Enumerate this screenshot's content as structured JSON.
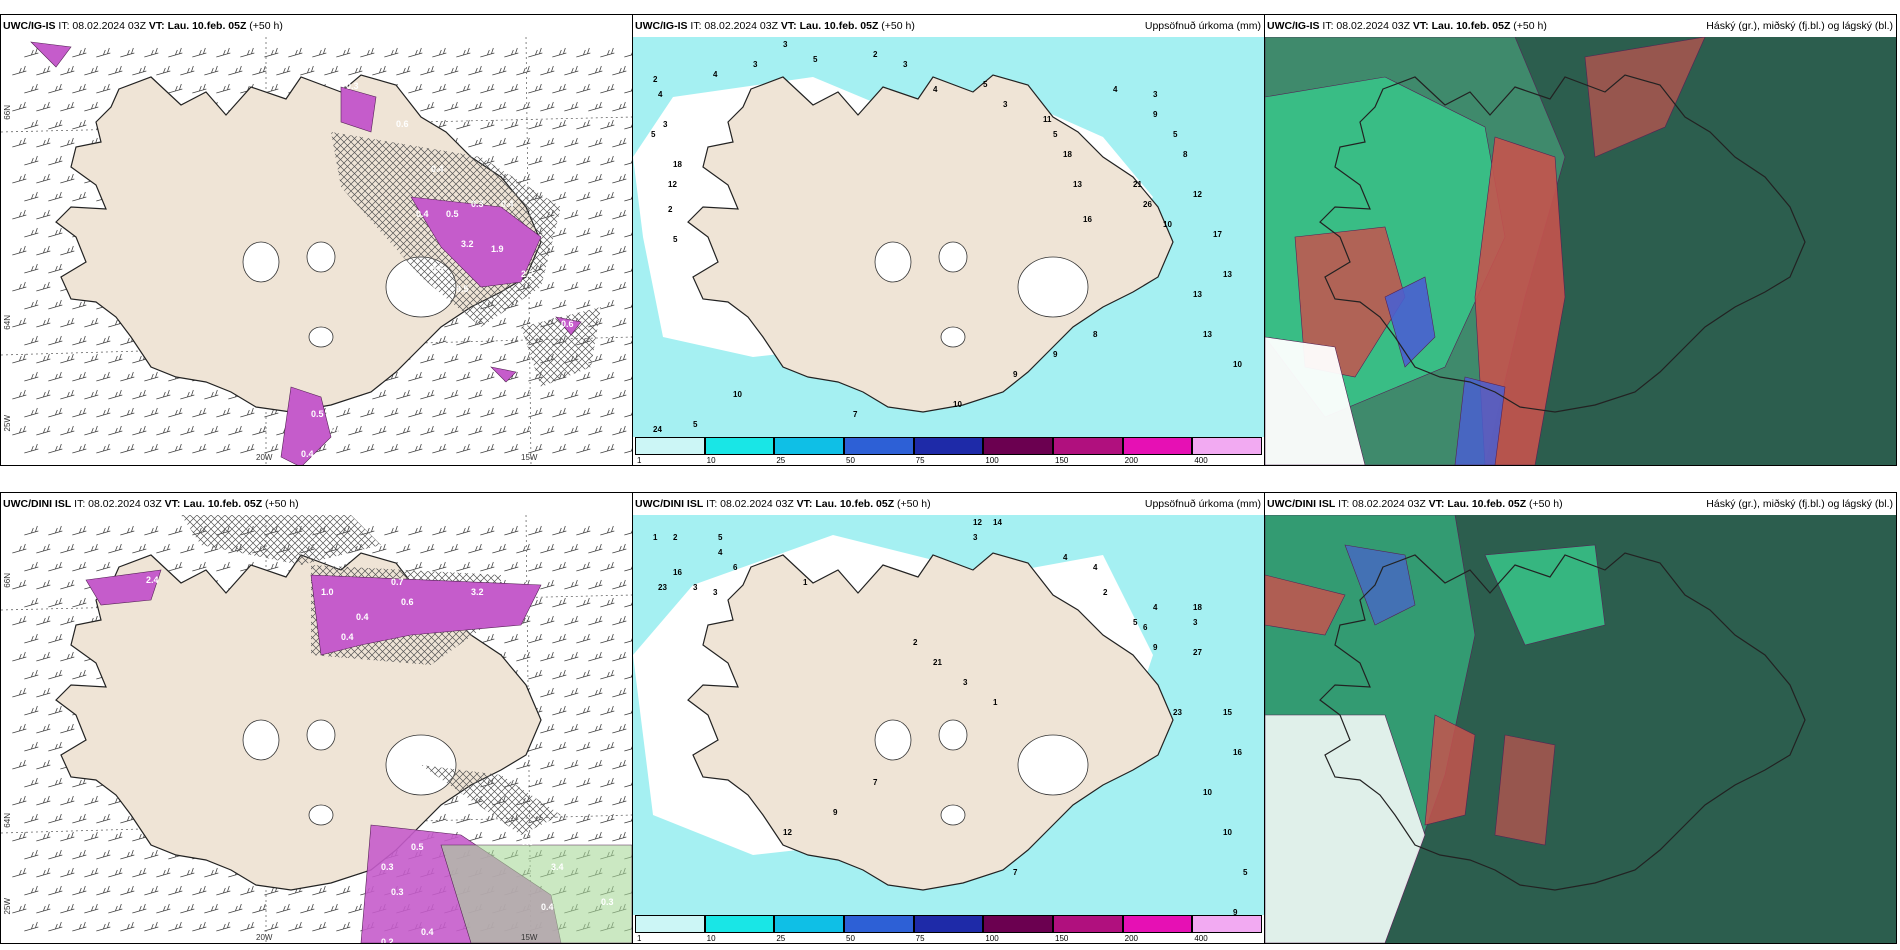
{
  "panels": [
    {
      "id": "p1",
      "model": "UWC/IG-IS",
      "it": "IT: 08.02.2024 03Z",
      "vt_label": "VT:",
      "vt": "Lau. 10.feb. 05Z",
      "lead": "(+50 h)",
      "right": ""
    },
    {
      "id": "p2",
      "model": "UWC/IG-IS",
      "it": "IT: 08.02.2024 03Z",
      "vt_label": "VT:",
      "vt": "Lau. 10.feb. 05Z",
      "lead": "(+50 h)",
      "right": "Uppsöfnuð úrkoma (mm)"
    },
    {
      "id": "p3",
      "model": "UWC/IG-IS",
      "it": "IT: 08.02.2024 03Z",
      "vt_label": "VT:",
      "vt": "Lau. 10.feb. 05Z",
      "lead": "(+50 h)",
      "right": "Háský (gr.), miðský (fj.bl.) og lágský (bl.)"
    },
    {
      "id": "p4",
      "model": "UWC/DINI ISL",
      "it": "IT: 08.02.2024 03Z",
      "vt_label": "VT:",
      "vt": "Lau. 10.feb. 05Z",
      "lead": "(+50 h)",
      "right": ""
    },
    {
      "id": "p5",
      "model": "UWC/DINI ISL",
      "it": "IT: 08.02.2024 03Z",
      "vt_label": "VT:",
      "vt": "Lau. 10.feb. 05Z",
      "lead": "(+50 h)",
      "right": "Uppsöfnuð úrkoma (mm)"
    },
    {
      "id": "p6",
      "model": "UWC/DINI ISL",
      "it": "IT: 08.02.2024 03Z",
      "vt_label": "VT:",
      "vt": "Lau. 10.feb. 05Z",
      "lead": "(+50 h)",
      "right": "Háský (gr.), miðský (fj.bl.) og lágský (bl.)"
    }
  ],
  "grid_labels": {
    "lat66": "66N",
    "lat64": "64N",
    "lon25": "25W",
    "lon20": "20W",
    "lon15": "15W"
  },
  "colorbar": {
    "ticks": [
      "1",
      "10",
      "25",
      "50",
      "75",
      "100",
      "150",
      "200",
      "400"
    ],
    "colors": [
      "#ccf6f6",
      "#19e6e6",
      "#0fbfe6",
      "#2d60d6",
      "#1e2aa8",
      "#6b0050",
      "#b0107e",
      "#e610b4",
      "#f2aaf2"
    ]
  },
  "colors": {
    "land": "#efe4d6",
    "precip": "#a5f0f2",
    "snow": "#c55ccb",
    "cloud_dark": "#2c5e4e",
    "cloud_mid": "#3f8a6c",
    "cloud_green": "#38c58a",
    "cloud_red": "#c5534e",
    "cloud_blue": "#4a5fd0"
  },
  "snow_labels_top": [
    "0.3",
    "0.6",
    "0.4",
    "0.4",
    "0.3",
    "0.5",
    "0.4",
    "3.2",
    "1.9",
    "0.5",
    "2.2",
    "0.5",
    "0.5",
    "0.6",
    "0.6",
    "0.4"
  ],
  "snow_labels_bottom": [
    "2.4",
    "1.0",
    "0.6",
    "0.7",
    "0.4",
    "3.2",
    "0.4",
    "0.3",
    "0.5",
    "0.3",
    "0.5",
    "3.4",
    "0.4",
    "0.3",
    "0.2",
    "0.4"
  ],
  "precip_labels_top": [
    "2",
    "4",
    "5",
    "3",
    "18",
    "12",
    "2",
    "5",
    "4",
    "3",
    "3",
    "5",
    "2",
    "3",
    "4",
    "5",
    "3",
    "11",
    "5",
    "18",
    "13",
    "16",
    "21",
    "26",
    "10",
    "4",
    "9",
    "8",
    "12",
    "17",
    "13",
    "13",
    "13",
    "10",
    "8",
    "9",
    "9",
    "10",
    "7",
    "10",
    "5",
    "3",
    "5",
    "24"
  ],
  "precip_labels_bottom": [
    "1",
    "2",
    "5",
    "4",
    "6",
    "16",
    "23",
    "3",
    "3",
    "1",
    "12",
    "14",
    "3",
    "4",
    "4",
    "2",
    "5",
    "4",
    "6",
    "9",
    "3",
    "18",
    "27",
    "23",
    "15",
    "16",
    "10",
    "10",
    "5",
    "9",
    "7",
    "7",
    "9",
    "12",
    "21",
    "3",
    "2",
    "1"
  ]
}
